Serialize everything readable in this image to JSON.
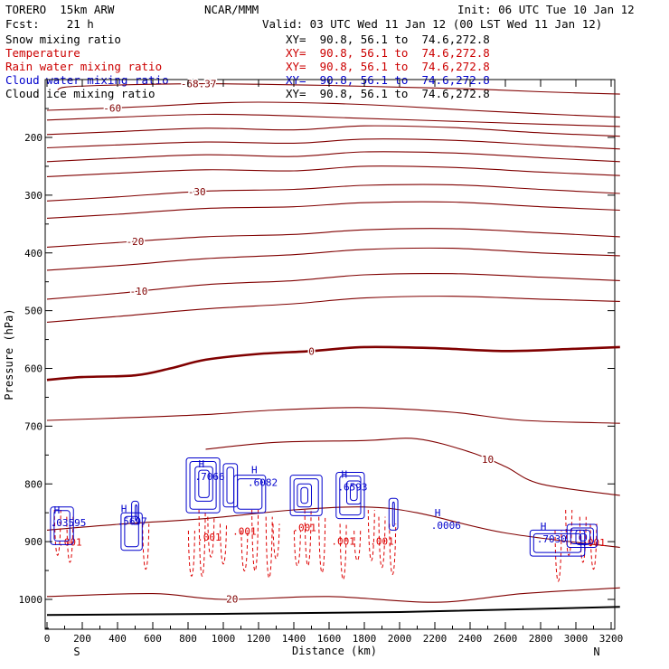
{
  "header": {
    "model": "TORERO  15km ARW",
    "center": "NCAR/MMM",
    "init": "Init: 06 UTC Tue 10 Jan 12",
    "fcst": "Fcst:    21 h",
    "valid": "Valid: 03 UTC Wed 11 Jan 12 (00 LST Wed 11 Jan 12)"
  },
  "legend": [
    {
      "name": "Snow mixing ratio",
      "xy": "",
      "color": "#000000"
    },
    {
      "name": "Temperature",
      "xy": "XY=  90.8, 56.1 to  74.6,272.8",
      "color": "#cc0000"
    },
    {
      "name": "Rain water mixing ratio",
      "xy": "XY=  90.8, 56.1 to  74.6,272.8",
      "color": "#cc0000"
    },
    {
      "name": "Cloud water mixing ratio",
      "xy": "XY=  90.8, 56.1 to  74.6,272.8",
      "color": "#0000cc"
    },
    {
      "name": "Cloud ice mixing ratio",
      "xy": "XY=  90.8, 56.1 to  74.6,272.8",
      "color": "#000000"
    }
  ],
  "legend_top_xy": "XY=  90.8, 56.1 to  74.6,272.8",
  "colors": {
    "temperature": "#800000",
    "rain": "#dd0000",
    "cloud_water": "#0000cc",
    "ground": "#000000"
  },
  "chart_data": {
    "type": "contour",
    "xlabel": "Distance (km)",
    "ylabel": "Pressure (hPa)",
    "xlim": [
      0,
      3250
    ],
    "ylim": [
      1050,
      100
    ],
    "x_ticks": [
      0,
      200,
      400,
      600,
      800,
      1000,
      1200,
      1400,
      1600,
      1800,
      2000,
      2200,
      2400,
      2600,
      2800,
      3000,
      3200
    ],
    "y_ticks": [
      200,
      300,
      400,
      500,
      600,
      700,
      800,
      900,
      1000
    ],
    "x_end_labels": {
      "left": "S",
      "right": "N"
    },
    "ground_pressure": [
      [
        0,
        1027
      ],
      [
        1000,
        1025
      ],
      [
        2000,
        1022
      ],
      [
        3250,
        1013
      ]
    ],
    "temperature_contours": [
      {
        "level": -68.37,
        "label": "-68.37",
        "label_x": 860,
        "points": [
          [
            60,
            118
          ],
          [
            100,
            113
          ],
          [
            300,
            110
          ],
          [
            600,
            108
          ],
          [
            900,
            107
          ],
          [
            1200,
            108
          ],
          [
            1600,
            110
          ],
          [
            2000,
            113
          ],
          [
            2400,
            116
          ],
          [
            2800,
            121
          ],
          [
            3250,
            125
          ]
        ]
      },
      {
        "level": -60,
        "label": "-60",
        "label_x": 370,
        "points": [
          [
            0,
            153
          ],
          [
            200,
            151
          ],
          [
            600,
            146
          ],
          [
            900,
            141
          ],
          [
            1200,
            139
          ],
          [
            1600,
            141
          ],
          [
            2000,
            146
          ],
          [
            2400,
            153
          ],
          [
            2800,
            159
          ],
          [
            3250,
            165
          ]
        ]
      },
      {
        "level": -55,
        "points": [
          [
            0,
            170
          ],
          [
            400,
            165
          ],
          [
            900,
            160
          ],
          [
            1300,
            162
          ],
          [
            1700,
            166
          ],
          [
            2200,
            171
          ],
          [
            2800,
            177
          ],
          [
            3250,
            181
          ]
        ]
      },
      {
        "level": -50,
        "points": [
          [
            0,
            195
          ],
          [
            400,
            190
          ],
          [
            900,
            184
          ],
          [
            1400,
            187
          ],
          [
            1800,
            180
          ],
          [
            2300,
            183
          ],
          [
            2800,
            192
          ],
          [
            3250,
            198
          ]
        ]
      },
      {
        "level": -45,
        "points": [
          [
            0,
            218
          ],
          [
            400,
            213
          ],
          [
            900,
            208
          ],
          [
            1400,
            210
          ],
          [
            1800,
            203
          ],
          [
            2300,
            205
          ],
          [
            2800,
            213
          ],
          [
            3250,
            220
          ]
        ]
      },
      {
        "level": -40,
        "points": [
          [
            0,
            242
          ],
          [
            400,
            236
          ],
          [
            900,
            230
          ],
          [
            1400,
            233
          ],
          [
            1800,
            225
          ],
          [
            2300,
            227
          ],
          [
            2800,
            235
          ],
          [
            3250,
            242
          ]
        ]
      },
      {
        "level": -35,
        "points": [
          [
            0,
            268
          ],
          [
            400,
            262
          ],
          [
            900,
            256
          ],
          [
            1400,
            258
          ],
          [
            1800,
            250
          ],
          [
            2300,
            252
          ],
          [
            2800,
            260
          ],
          [
            3250,
            266
          ]
        ]
      },
      {
        "level": -30,
        "label": "-30",
        "label_x": 850,
        "points": [
          [
            0,
            310
          ],
          [
            400,
            303
          ],
          [
            900,
            293
          ],
          [
            1400,
            290
          ],
          [
            1800,
            283
          ],
          [
            2300,
            282
          ],
          [
            2800,
            290
          ],
          [
            3250,
            297
          ]
        ]
      },
      {
        "level": -25,
        "points": [
          [
            0,
            340
          ],
          [
            400,
            333
          ],
          [
            900,
            323
          ],
          [
            1400,
            320
          ],
          [
            1800,
            313
          ],
          [
            2300,
            312
          ],
          [
            2800,
            320
          ],
          [
            3250,
            326
          ]
        ]
      },
      {
        "level": -20,
        "label": "-20",
        "label_x": 500,
        "points": [
          [
            0,
            390
          ],
          [
            400,
            382
          ],
          [
            900,
            372
          ],
          [
            1400,
            368
          ],
          [
            1800,
            360
          ],
          [
            2300,
            358
          ],
          [
            2800,
            365
          ],
          [
            3250,
            372
          ]
        ]
      },
      {
        "level": -15,
        "points": [
          [
            0,
            430
          ],
          [
            400,
            422
          ],
          [
            900,
            410
          ],
          [
            1400,
            403
          ],
          [
            1800,
            394
          ],
          [
            2300,
            392
          ],
          [
            2800,
            400
          ],
          [
            3250,
            405
          ]
        ]
      },
      {
        "level": -10,
        "label": "-10",
        "label_x": 520,
        "points": [
          [
            0,
            480
          ],
          [
            400,
            470
          ],
          [
            900,
            455
          ],
          [
            1400,
            448
          ],
          [
            1800,
            438
          ],
          [
            2300,
            436
          ],
          [
            2800,
            442
          ],
          [
            3250,
            448
          ]
        ]
      },
      {
        "level": -5,
        "points": [
          [
            0,
            520
          ],
          [
            400,
            510
          ],
          [
            900,
            497
          ],
          [
            1400,
            488
          ],
          [
            1800,
            478
          ],
          [
            2300,
            475
          ],
          [
            2800,
            480
          ],
          [
            3250,
            484
          ]
        ]
      },
      {
        "level": 0,
        "label": "0",
        "label_x": 1500,
        "bold": true,
        "points": [
          [
            0,
            620
          ],
          [
            200,
            615
          ],
          [
            500,
            612
          ],
          [
            700,
            600
          ],
          [
            900,
            585
          ],
          [
            1200,
            575
          ],
          [
            1500,
            570
          ],
          [
            1800,
            563
          ],
          [
            2200,
            565
          ],
          [
            2600,
            570
          ],
          [
            3000,
            566
          ],
          [
            3250,
            563
          ]
        ]
      },
      {
        "level": 5,
        "points": [
          [
            0,
            690
          ],
          [
            400,
            686
          ],
          [
            900,
            680
          ],
          [
            1300,
            672
          ],
          [
            1800,
            668
          ],
          [
            2300,
            676
          ],
          [
            2700,
            690
          ],
          [
            3250,
            695
          ]
        ]
      },
      {
        "level": 10,
        "label": "10",
        "label_x": 2500,
        "points": [
          [
            900,
            740
          ],
          [
            1300,
            728
          ],
          [
            1800,
            725
          ],
          [
            2100,
            722
          ],
          [
            2400,
            745
          ],
          [
            2600,
            770
          ],
          [
            2800,
            800
          ],
          [
            3250,
            820
          ]
        ]
      },
      {
        "level": 15,
        "points": [
          [
            0,
            880
          ],
          [
            400,
            870
          ],
          [
            900,
            860
          ],
          [
            1400,
            845
          ],
          [
            1800,
            840
          ],
          [
            2100,
            850
          ],
          [
            2600,
            885
          ],
          [
            3250,
            910
          ]
        ]
      },
      {
        "level": 20,
        "label": "20",
        "label_x": 1050,
        "points": [
          [
            0,
            995
          ],
          [
            600,
            990
          ],
          [
            1000,
            1000
          ],
          [
            1600,
            995
          ],
          [
            2200,
            1005
          ],
          [
            2700,
            990
          ],
          [
            3250,
            980
          ]
        ]
      }
    ],
    "cloud_water_maxima": [
      {
        "label": ".03595",
        "x": 80,
        "p": 870
      },
      {
        "label": ".5697",
        "x": 460,
        "p": 868
      },
      {
        "label": ".7066",
        "x": 900,
        "p": 790
      },
      {
        "label": ".6082",
        "x": 1200,
        "p": 800
      },
      {
        "label": ".6593",
        "x": 1710,
        "p": 808
      },
      {
        "label": ".0006",
        "x": 2240,
        "p": 875
      },
      {
        "label": ".7030",
        "x": 2840,
        "p": 898
      }
    ],
    "rain_labels": [
      {
        "label": ".001",
        "x": 130,
        "p": 907
      },
      {
        "label": ".001",
        "x": 920,
        "p": 898
      },
      {
        "label": ".001",
        "x": 1120,
        "p": 888
      },
      {
        "label": ".001",
        "x": 1460,
        "p": 882
      },
      {
        "label": ".001",
        "x": 1680,
        "p": 905
      },
      {
        "label": ".001",
        "x": 1900,
        "p": 905
      },
      {
        "label": ".001",
        "x": 3100,
        "p": 908
      }
    ]
  }
}
